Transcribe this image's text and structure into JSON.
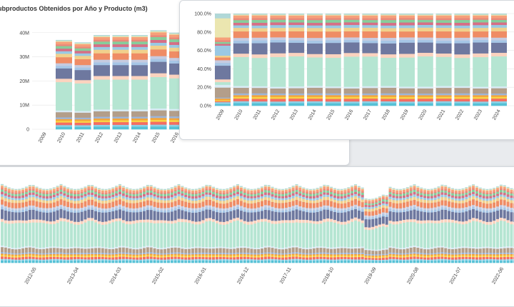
{
  "colors": [
    "#55c1d6",
    "#8fd1e6",
    "#f46d63",
    "#f8d446",
    "#f4a53b",
    "#9db5d8",
    "#b39e8a",
    "#d8ebf5",
    "#b5e5d2",
    "#fbd3bf",
    "#6e789f",
    "#a6c6e6",
    "#c6cbe0",
    "#ef8c65",
    "#f1d08c",
    "#9ac9e4",
    "#d66f86",
    "#87cd9b",
    "#e9897a",
    "#f6a07a",
    "#ebe6b0",
    "#b0d8d8"
  ],
  "chart_data": [
    {
      "type": "bar",
      "title": "ubproductos Obtenidos por Año y Producto (m3)",
      "stacked": true,
      "categories": [
        "2009",
        "2010",
        "2011",
        "2012",
        "2013",
        "2014",
        "2015",
        "2016"
      ],
      "ytick_labels": [
        "0",
        "10M",
        "20M",
        "30M",
        "40M"
      ],
      "ylim": [
        0,
        42
      ],
      "totals": [
        0,
        37,
        36,
        39,
        39,
        39,
        41,
        40
      ],
      "shares": [
        0.03,
        0.02,
        0.03,
        0.02,
        0.02,
        0.02,
        0.06,
        0.02,
        0.33,
        0.04,
        0.12,
        0.03,
        0.03,
        0.07,
        0.04,
        0.03,
        0.03,
        0.03,
        0.02,
        0.03,
        0.01,
        0.01
      ]
    },
    {
      "type": "bar",
      "stacked": true,
      "normalized": true,
      "categories": [
        "2009",
        "2010",
        "2011",
        "2012",
        "2013",
        "2014",
        "2015",
        "2016",
        "2017",
        "2018",
        "2019",
        "2020",
        "2021",
        "2022",
        "2023",
        "2024"
      ],
      "ytick_labels": [
        "0.0%",
        "20.0%",
        "40.0%",
        "60.0%",
        "80.0%",
        "100.0%"
      ],
      "ylim": [
        0,
        100
      ],
      "shares": [
        0.03,
        0.02,
        0.03,
        0.02,
        0.02,
        0.02,
        0.06,
        0.02,
        0.33,
        0.04,
        0.12,
        0.03,
        0.03,
        0.07,
        0.04,
        0.03,
        0.03,
        0.03,
        0.02,
        0.03,
        0.01,
        0.01
      ],
      "first_bar_shares": [
        0.02,
        0.02,
        0.01,
        0.01,
        0.02,
        0.01,
        0.11,
        0.03,
        0.03,
        0.03,
        0.15,
        0.03,
        0.03,
        0.03,
        0.02,
        0.11,
        0.02,
        0.02,
        0.02,
        0.03,
        0.21,
        0.05
      ]
    },
    {
      "type": "bar",
      "stacked": true,
      "normalized": true,
      "x_tick_labels": [
        "2012-05",
        "2013-04",
        "2014-03",
        "2015-02",
        "2016-01",
        "2016-12",
        "2017-11",
        "2018-10",
        "2019-09",
        "2020-08",
        "2021-07",
        "2022-06"
      ],
      "shares": [
        0.03,
        0.02,
        0.03,
        0.02,
        0.02,
        0.02,
        0.06,
        0.02,
        0.33,
        0.04,
        0.12,
        0.03,
        0.03,
        0.07,
        0.04,
        0.03,
        0.03,
        0.03,
        0.02,
        0.03,
        0.01,
        0.01
      ]
    }
  ]
}
